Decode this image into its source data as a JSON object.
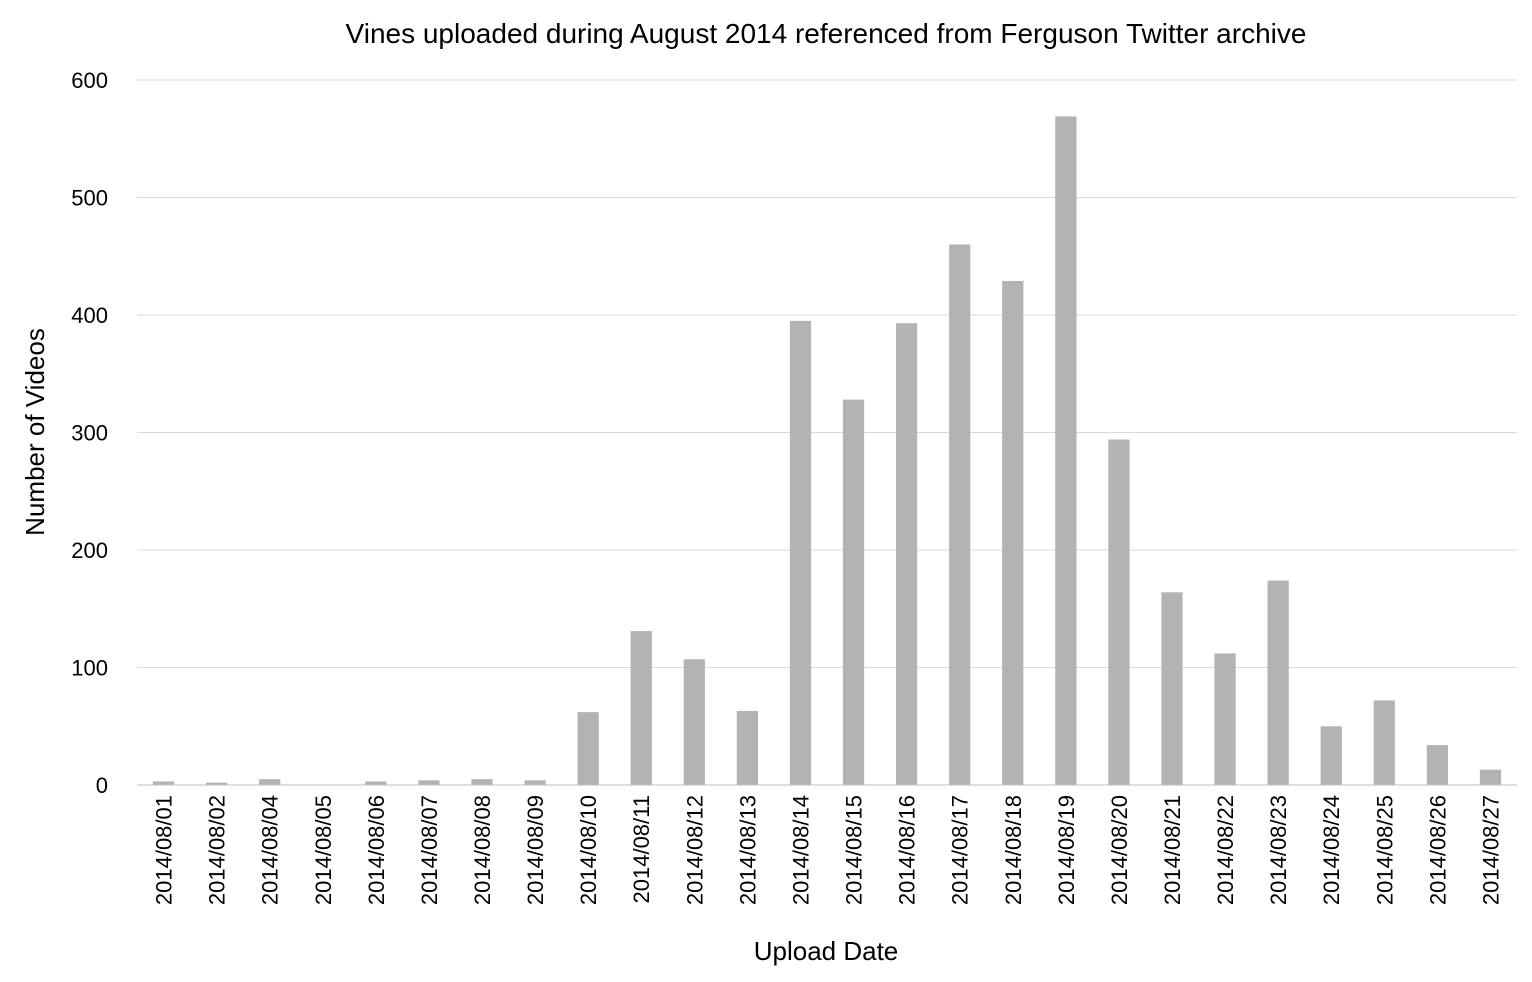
{
  "chart_data": {
    "type": "bar",
    "title": "Vines uploaded during August 2014 referenced from Ferguson Twitter archive",
    "xlabel": "Upload Date",
    "ylabel": "Number of Videos",
    "ylim": [
      0,
      600
    ],
    "yticks": [
      0,
      100,
      200,
      300,
      400,
      500,
      600
    ],
    "grid": true,
    "legend": "none",
    "bar_color": "#b3b3b3",
    "categories": [
      "2014/08/01",
      "2014/08/02",
      "2014/08/04",
      "2014/08/05",
      "2014/08/06",
      "2014/08/07",
      "2014/08/08",
      "2014/08/09",
      "2014/08/10",
      "2014/08/11",
      "2014/08/12",
      "2014/08/13",
      "2014/08/14",
      "2014/08/15",
      "2014/08/16",
      "2014/08/17",
      "2014/08/18",
      "2014/08/19",
      "2014/08/20",
      "2014/08/21",
      "2014/08/22",
      "2014/08/23",
      "2014/08/24",
      "2014/08/25",
      "2014/08/26",
      "2014/08/27"
    ],
    "values": [
      3,
      2,
      5,
      0,
      3,
      4,
      5,
      4,
      62,
      131,
      107,
      63,
      395,
      328,
      393,
      460,
      429,
      569,
      294,
      164,
      112,
      174,
      50,
      72,
      34,
      13
    ]
  }
}
